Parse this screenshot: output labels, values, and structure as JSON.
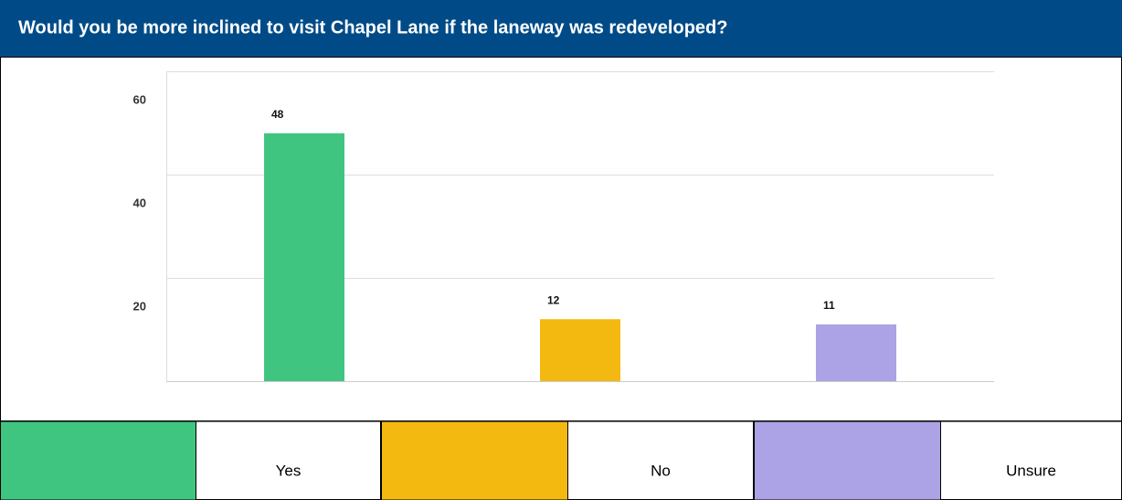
{
  "chart_data": {
    "type": "bar",
    "title": "Would you be more inclined to visit Chapel Lane if the laneway was redeveloped?",
    "categories": [
      "Yes",
      "No",
      "Unsure"
    ],
    "values": [
      48,
      12,
      11
    ],
    "colors": [
      "#40c580",
      "#f3b910",
      "#aba3e5"
    ],
    "ylim": [
      0,
      60
    ],
    "yticks": [
      20,
      40,
      60
    ],
    "grid": true
  }
}
